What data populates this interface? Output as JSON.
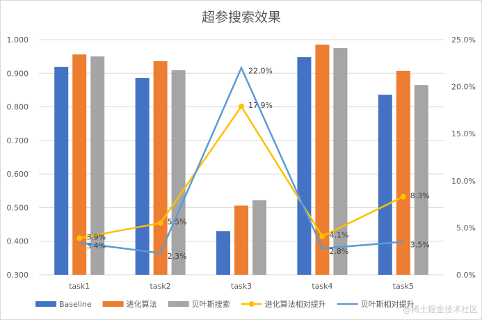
{
  "chart_data": {
    "type": "bar",
    "title": "超参搜索效果",
    "categories": [
      "task1",
      "task2",
      "task3",
      "task4",
      "task5"
    ],
    "y_left": {
      "range": [
        0.3,
        1.0
      ],
      "ticks": [
        "0.300",
        "0.400",
        "0.500",
        "0.600",
        "0.700",
        "0.800",
        "0.900",
        "1.000"
      ]
    },
    "y_right": {
      "range": [
        0,
        25
      ],
      "ticks": [
        "0.0%",
        "5.0%",
        "10.0%",
        "15.0%",
        "20.0%",
        "25.0%"
      ]
    },
    "grid": true,
    "legend_position": "bottom",
    "series": [
      {
        "name": "Baseline",
        "type": "bar",
        "axis": "left",
        "color": "#4472c4",
        "values": [
          0.919,
          0.886,
          0.43,
          0.948,
          0.836
        ]
      },
      {
        "name": "进化算法",
        "type": "bar",
        "axis": "left",
        "color": "#ed7d31",
        "values": [
          0.956,
          0.936,
          0.506,
          0.985,
          0.907
        ]
      },
      {
        "name": "贝叶斯搜索",
        "type": "bar",
        "axis": "left",
        "color": "#a5a5a5",
        "values": [
          0.95,
          0.909,
          0.522,
          0.975,
          0.865
        ]
      },
      {
        "name": "进化算法相对提升",
        "type": "line",
        "axis": "right",
        "color": "#ffc000",
        "marker": true,
        "values": [
          3.9,
          5.5,
          17.9,
          4.1,
          8.3
        ],
        "labels": [
          "3.9%",
          "5.5%",
          "17.9%",
          "4.1%",
          "8.3%"
        ]
      },
      {
        "name": "贝叶斯相对提升",
        "type": "line",
        "axis": "right",
        "color": "#5b9bd5",
        "marker": false,
        "values": [
          3.4,
          2.3,
          22.0,
          2.8,
          3.5
        ],
        "labels": [
          "3.4%",
          "2.3%",
          "22.0%",
          "2.8%",
          "3.5%"
        ]
      }
    ]
  },
  "watermark": "@稀土掘金技术社区"
}
